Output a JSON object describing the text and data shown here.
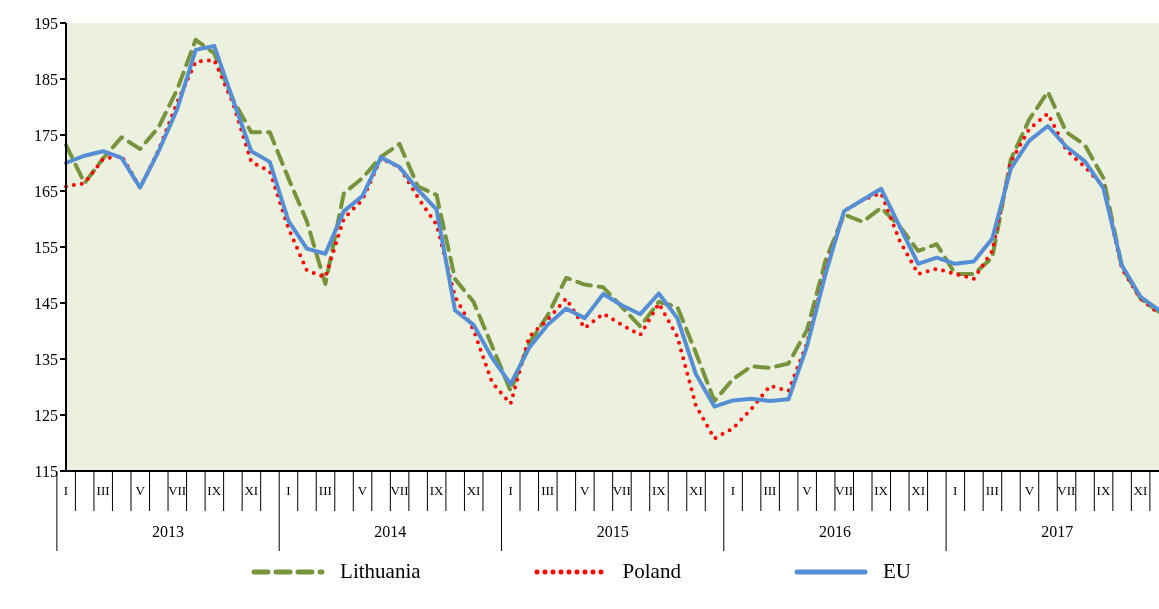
{
  "chart_data": {
    "type": "line",
    "categories": [
      "I",
      null,
      "III",
      null,
      "V",
      null,
      "VII",
      null,
      "IX",
      null,
      "XI",
      null,
      "I",
      null,
      "III",
      null,
      "V",
      null,
      "VII",
      null,
      "IX",
      null,
      "XI",
      null,
      "I",
      null,
      "III",
      null,
      "V",
      null,
      "VII",
      null,
      "IX",
      null,
      "XI",
      null,
      "I",
      null,
      "III",
      null,
      "V",
      null,
      "VII",
      null,
      "IX",
      null,
      "XI",
      null,
      "I",
      null,
      "III",
      null,
      "V",
      null,
      "VII",
      null,
      "IX",
      null,
      "XI",
      null
    ],
    "annotations": [
      "2013",
      "2014",
      "2015",
      "2016",
      "2017"
    ],
    "series": [
      {
        "name": "Lithuania",
        "color": "#77933c",
        "line_style": "dashed",
        "values": [
          173.2,
          166.4,
          170.8,
          174.6,
          172.5,
          176.4,
          183.1,
          192,
          189.6,
          181.4,
          175.5,
          175.5,
          167.3,
          159.6,
          148.4,
          164.6,
          167.3,
          171.1,
          173.4,
          165.8,
          164.3,
          149.3,
          145.2,
          137.3,
          129.3,
          137.8,
          142.8,
          149.5,
          148.3,
          147.8,
          144.3,
          140.8,
          145.2,
          144.3,
          136.1,
          127.5,
          131.4,
          133.7,
          133.4,
          134.2,
          140.2,
          152.6,
          160.8,
          159.5,
          162,
          158.7,
          154.3,
          155.5,
          150.2,
          150.2,
          153.1,
          170.6,
          177.8,
          182.7,
          175.5,
          173.2,
          167.3,
          151.4,
          145.8,
          143.4
        ]
      },
      {
        "name": "Poland",
        "color": "#ff0000",
        "line_style": "dotted",
        "values": [
          165.8,
          166.4,
          170.7,
          171.3,
          165.6,
          172.3,
          180.8,
          188.1,
          188.4,
          180.8,
          170.2,
          168.5,
          158.4,
          150.8,
          149.6,
          160.1,
          163.4,
          170.8,
          169.3,
          163.8,
          159,
          146.1,
          140.2,
          130.8,
          127,
          139,
          142,
          145.8,
          140.5,
          143.1,
          141.1,
          139.3,
          144.9,
          139,
          126.7,
          120.8,
          122.6,
          126.1,
          130.2,
          129.3,
          137.8,
          150.8,
          161.4,
          163.4,
          164.6,
          156.1,
          150.2,
          151.1,
          150.2,
          149.3,
          154.3,
          170.2,
          176.1,
          178.8,
          172.3,
          169.3,
          165.8,
          151.1,
          145.8,
          143.1
        ]
      },
      {
        "name": "EU",
        "color": "#558ed5",
        "line_style": "solid",
        "values": [
          170,
          171.3,
          172.1,
          170.9,
          165.6,
          172.1,
          179.6,
          190.2,
          190.9,
          181.4,
          172.1,
          170.2,
          159.7,
          154.7,
          153.8,
          161.4,
          164.1,
          171,
          169.3,
          165.2,
          161.7,
          143.7,
          141.1,
          135.2,
          130.5,
          137,
          141.1,
          144,
          142.3,
          146.6,
          144.6,
          143,
          146.7,
          142.3,
          132.3,
          126.5,
          127.6,
          127.9,
          127.5,
          127.8,
          137.3,
          150.2,
          161.4,
          163.4,
          165.4,
          158.7,
          152,
          153.1,
          152,
          152.4,
          156.5,
          169,
          174,
          176.6,
          172.9,
          170.3,
          165.5,
          151.7,
          146.1,
          143.7
        ]
      }
    ],
    "ylim": [
      115,
      195
    ],
    "yticks": [
      115,
      125,
      135,
      145,
      155,
      165,
      175,
      185,
      195
    ],
    "legend": "bottom",
    "marker": "none"
  }
}
